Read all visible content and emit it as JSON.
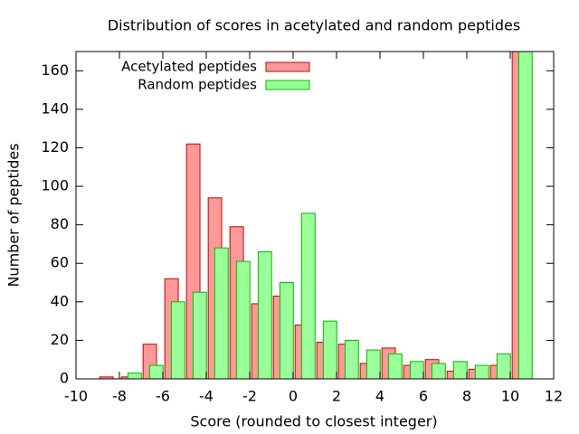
{
  "chart_data": {
    "type": "bar",
    "title": "Distribution of scores in acetylated and random peptides",
    "x_label": "Score (rounded to closest integer)",
    "y_label": "Number of peptides",
    "x": [
      -8,
      -7,
      -6,
      -5,
      -4,
      -3,
      -2,
      -1,
      0,
      1,
      2,
      3,
      4,
      5,
      6,
      7,
      8,
      9,
      10,
      11
    ],
    "series": [
      {
        "name": "Acetylated peptides",
        "color": "#ff9999",
        "values": [
          1,
          1,
          18,
          52,
          122,
          94,
          79,
          39,
          43,
          28,
          19,
          18,
          8,
          16,
          7,
          10,
          4,
          5,
          7,
          170
        ]
      },
      {
        "name": "Random peptides",
        "color": "#99ff99",
        "values": [
          0,
          3,
          7,
          40,
          45,
          68,
          61,
          66,
          50,
          86,
          30,
          20,
          15,
          13,
          9,
          8,
          9,
          7,
          13,
          170
        ]
      }
    ],
    "xlim": [
      -10,
      12
    ],
    "xticks": [
      -10,
      -8,
      -6,
      -4,
      -2,
      0,
      2,
      4,
      6,
      8,
      10,
      12
    ],
    "ylim": [
      0,
      170
    ],
    "yticks": [
      0,
      20,
      40,
      60,
      80,
      100,
      120,
      140,
      160
    ],
    "legend": "top-left"
  }
}
